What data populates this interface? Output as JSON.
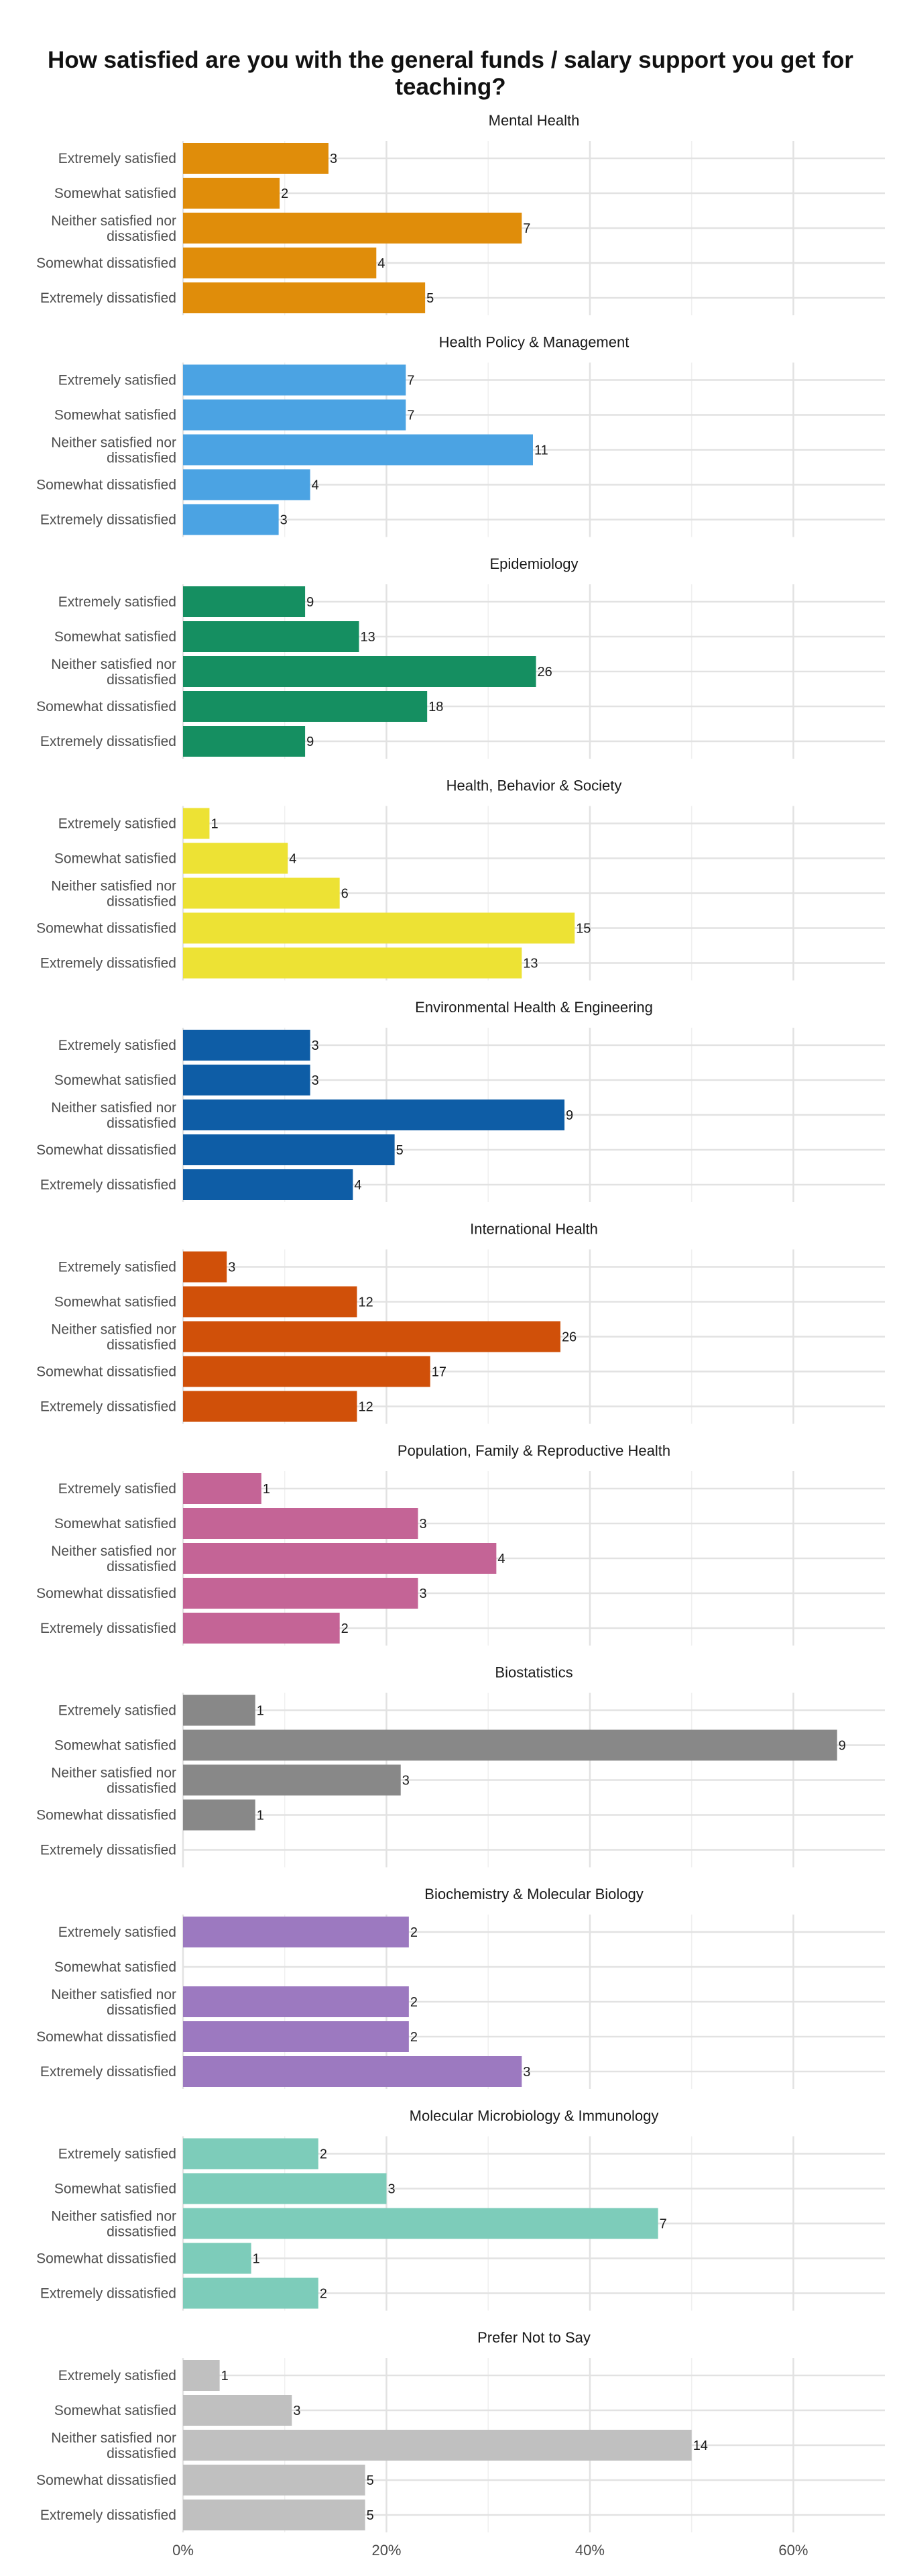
{
  "title": "How satisfied are you with the general funds / salary support you get for teaching?",
  "chart_data": {
    "type": "bar",
    "orientation": "horizontal",
    "value_unit": "percent of department respondents",
    "categories": [
      "Extremely satisfied",
      "Somewhat satisfied",
      "Neither satisfied nor dissatisfied",
      "Somewhat dissatisfied",
      "Extremely dissatisfied"
    ],
    "xlim": [
      0,
      0.69
    ],
    "x_ticks": [
      0,
      0.2,
      0.4,
      0.6
    ],
    "x_tick_labels": [
      "0%",
      "20%",
      "40%",
      "60%"
    ],
    "grid": true,
    "legend": "none",
    "panels": [
      {
        "title": "Mental Health",
        "color": "#E08D0A",
        "counts": [
          3,
          2,
          7,
          4,
          5
        ],
        "shares": [
          0.143,
          0.095,
          0.333,
          0.19,
          0.238
        ]
      },
      {
        "title": "Health Policy & Management",
        "color": "#4BA3E3",
        "counts": [
          7,
          7,
          11,
          4,
          3
        ],
        "shares": [
          0.219,
          0.219,
          0.344,
          0.125,
          0.094
        ]
      },
      {
        "title": "Epidemiology",
        "color": "#158F61",
        "counts": [
          9,
          13,
          26,
          18,
          9
        ],
        "shares": [
          0.12,
          0.173,
          0.347,
          0.24,
          0.12
        ]
      },
      {
        "title": "Health, Behavior & Society",
        "color": "#EDE234",
        "counts": [
          1,
          4,
          6,
          15,
          13
        ],
        "shares": [
          0.026,
          0.103,
          0.154,
          0.385,
          0.333
        ]
      },
      {
        "title": "Environmental Health & Engineering",
        "color": "#0E5DA6",
        "counts": [
          3,
          3,
          9,
          5,
          4
        ],
        "shares": [
          0.125,
          0.125,
          0.375,
          0.208,
          0.167
        ]
      },
      {
        "title": "International Health",
        "color": "#D05009",
        "counts": [
          3,
          12,
          26,
          17,
          12
        ],
        "shares": [
          0.043,
          0.171,
          0.371,
          0.243,
          0.171
        ]
      },
      {
        "title": "Population, Family & Reproductive Health",
        "color": "#C46496",
        "counts": [
          1,
          3,
          4,
          3,
          2
        ],
        "shares": [
          0.077,
          0.231,
          0.308,
          0.231,
          0.154
        ]
      },
      {
        "title": "Biostatistics",
        "color": "#888888",
        "counts": [
          1,
          9,
          3,
          1,
          null
        ],
        "shares": [
          0.071,
          0.643,
          0.214,
          0.071,
          null
        ]
      },
      {
        "title": "Biochemistry & Molecular Biology",
        "color": "#9C79C0",
        "counts": [
          2,
          null,
          2,
          2,
          3
        ],
        "shares": [
          0.222,
          null,
          0.222,
          0.222,
          0.333
        ]
      },
      {
        "title": "Molecular Microbiology & Immunology",
        "color": "#7DCCBA",
        "counts": [
          2,
          3,
          7,
          1,
          2
        ],
        "shares": [
          0.133,
          0.2,
          0.467,
          0.067,
          0.133
        ]
      },
      {
        "title": "Prefer Not to Say",
        "color": "#C0C0C0",
        "counts": [
          1,
          3,
          14,
          5,
          5
        ],
        "shares": [
          0.036,
          0.107,
          0.5,
          0.179,
          0.179
        ]
      }
    ]
  }
}
